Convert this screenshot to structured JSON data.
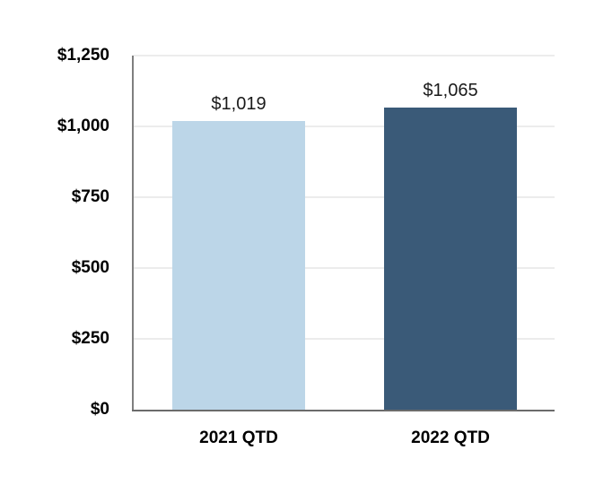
{
  "chart_data": {
    "type": "bar",
    "categories": [
      "2021 QTD",
      "2022 QTD"
    ],
    "values": [
      1019,
      1065
    ],
    "value_labels": [
      "$1,019",
      "$1,065"
    ],
    "title": "",
    "xlabel": "",
    "ylabel": "",
    "ylim": [
      0,
      1250
    ],
    "ytick_step": 250,
    "ytick_labels": [
      "$0",
      "$250",
      "$500",
      "$750",
      "$1,000",
      "$1,250"
    ],
    "legend": "none",
    "grid": "horizontal",
    "series_colors": [
      "#bcd6e8",
      "#3a5a78"
    ],
    "colors": {
      "background": "#ffffff",
      "gridline": "#ececec",
      "y_axis_line": "#7f7f7f",
      "x_axis_line": "#6b6b6b",
      "tick_label_text": "#000000",
      "data_label_text": "#1a1a1a"
    }
  }
}
